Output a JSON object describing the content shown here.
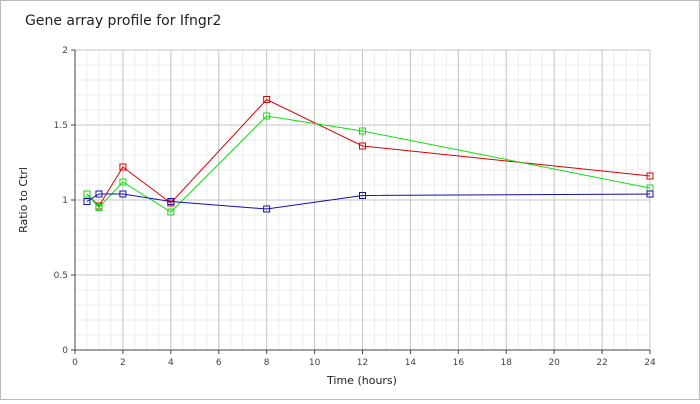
{
  "chart_data": {
    "type": "line",
    "title": "Gene array profile for Ifngr2",
    "xlabel": "Time (hours)",
    "ylabel": "Ratio to Ctrl",
    "xlim": [
      0,
      24
    ],
    "ylim": [
      0,
      2
    ],
    "x_ticks": [
      0,
      2,
      4,
      6,
      8,
      10,
      12,
      14,
      16,
      18,
      20,
      22,
      24
    ],
    "y_ticks": [
      0,
      0.5,
      1,
      1.5,
      2
    ],
    "y_tick_labels": [
      "0",
      "0.5",
      "1",
      "1.5",
      "2"
    ],
    "grid": true,
    "legend": "none",
    "x": [
      0.5,
      1,
      2,
      4,
      8,
      12,
      24
    ],
    "series": [
      {
        "color": "#dd0000",
        "marker": "square",
        "values": [
          1.04,
          0.96,
          1.22,
          0.98,
          1.67,
          1.36,
          1.16
        ]
      },
      {
        "color": "#11dd11",
        "marker": "square",
        "values": [
          1.04,
          0.95,
          1.12,
          0.92,
          1.56,
          1.46,
          1.08
        ]
      },
      {
        "color": "#1111aa",
        "marker": "square",
        "values": [
          0.99,
          1.04,
          1.04,
          0.99,
          0.94,
          1.03,
          1.04
        ]
      }
    ]
  }
}
